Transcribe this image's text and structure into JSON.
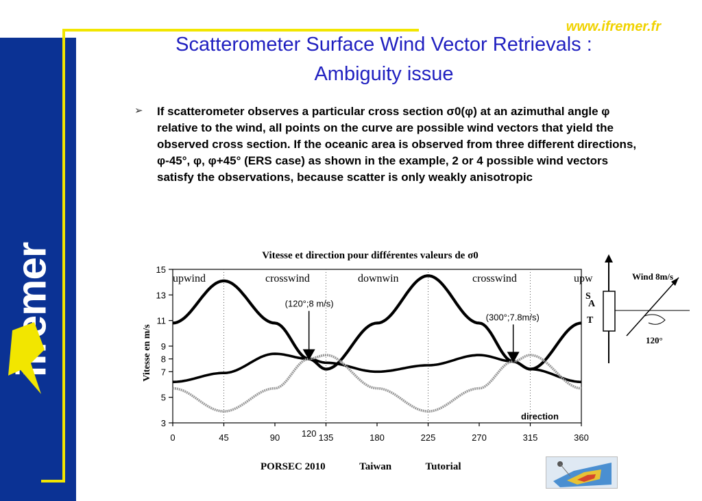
{
  "header": {
    "url": "www.ifremer.fr",
    "title_line1": "Scatterometer Surface Wind Vector Retrievals  :",
    "title_line2": "Ambiguity issue"
  },
  "logo": {
    "text": "ifremer"
  },
  "body": {
    "bullet": "➢",
    "paragraph": "If scatterometer observes a particular cross section σ0(φ) at an azimuthal angle φ relative to the wind, all points on the curve are possible wind vectors that yield the observed cross section. If the oceanic area is observed from three different directions, φ-45°, φ, φ+45° (ERS case) as shown in the example, 2 or 4 possible wind vectors satisfy the observations, because scatter is only weakly anisotropic"
  },
  "chart_data": {
    "type": "line",
    "title": "Vitesse et direction pour différentes valeurs de σ0",
    "xlabel": "direction",
    "ylabel": "Vitesse en m/s",
    "xlim": [
      0,
      360
    ],
    "ylim": [
      3,
      15
    ],
    "x_ticks": [
      "0",
      "45",
      "90",
      "120",
      "135",
      "180",
      "225",
      "270",
      "315",
      "360"
    ],
    "y_ticks": [
      "3",
      "5",
      "7",
      "8",
      "9",
      "11",
      "13",
      "15"
    ],
    "region_labels": [
      "upwind",
      "crosswind",
      "downwin",
      "crosswind",
      "upwind"
    ],
    "annotations": [
      {
        "text": "(120°;8 m/s)",
        "x": 120,
        "y": 8
      },
      {
        "text": "(300°;7.8m/s)",
        "x": 300,
        "y": 7.8
      }
    ],
    "series": [
      {
        "x": [
          0,
          45,
          90,
          120,
          135,
          180,
          225,
          270,
          300,
          315,
          360
        ],
        "values": [
          10.8,
          14.1,
          10.8,
          8.0,
          7.2,
          10.8,
          14.5,
          10.8,
          7.8,
          7.2,
          10.8
        ]
      },
      {
        "x": [
          0,
          45,
          90,
          120,
          135,
          180,
          225,
          270,
          300,
          315,
          360
        ],
        "values": [
          6.2,
          6.9,
          8.4,
          8.0,
          7.7,
          7.0,
          7.5,
          8.3,
          7.8,
          7.2,
          6.2
        ]
      },
      {
        "x": [
          0,
          45,
          90,
          120,
          135,
          180,
          225,
          270,
          300,
          315,
          360
        ],
        "values": [
          5.7,
          3.9,
          5.7,
          8.0,
          8.3,
          5.7,
          3.9,
          5.7,
          7.8,
          8.3,
          5.7
        ]
      }
    ]
  },
  "diagram": {
    "sat_letters": [
      "S",
      "A",
      "T"
    ],
    "wind_label": "Wind 8m/s",
    "angle_label": "120°"
  },
  "footer": {
    "event": "PORSEC 2010",
    "location": "Taiwan",
    "kind": "Tutorial"
  }
}
